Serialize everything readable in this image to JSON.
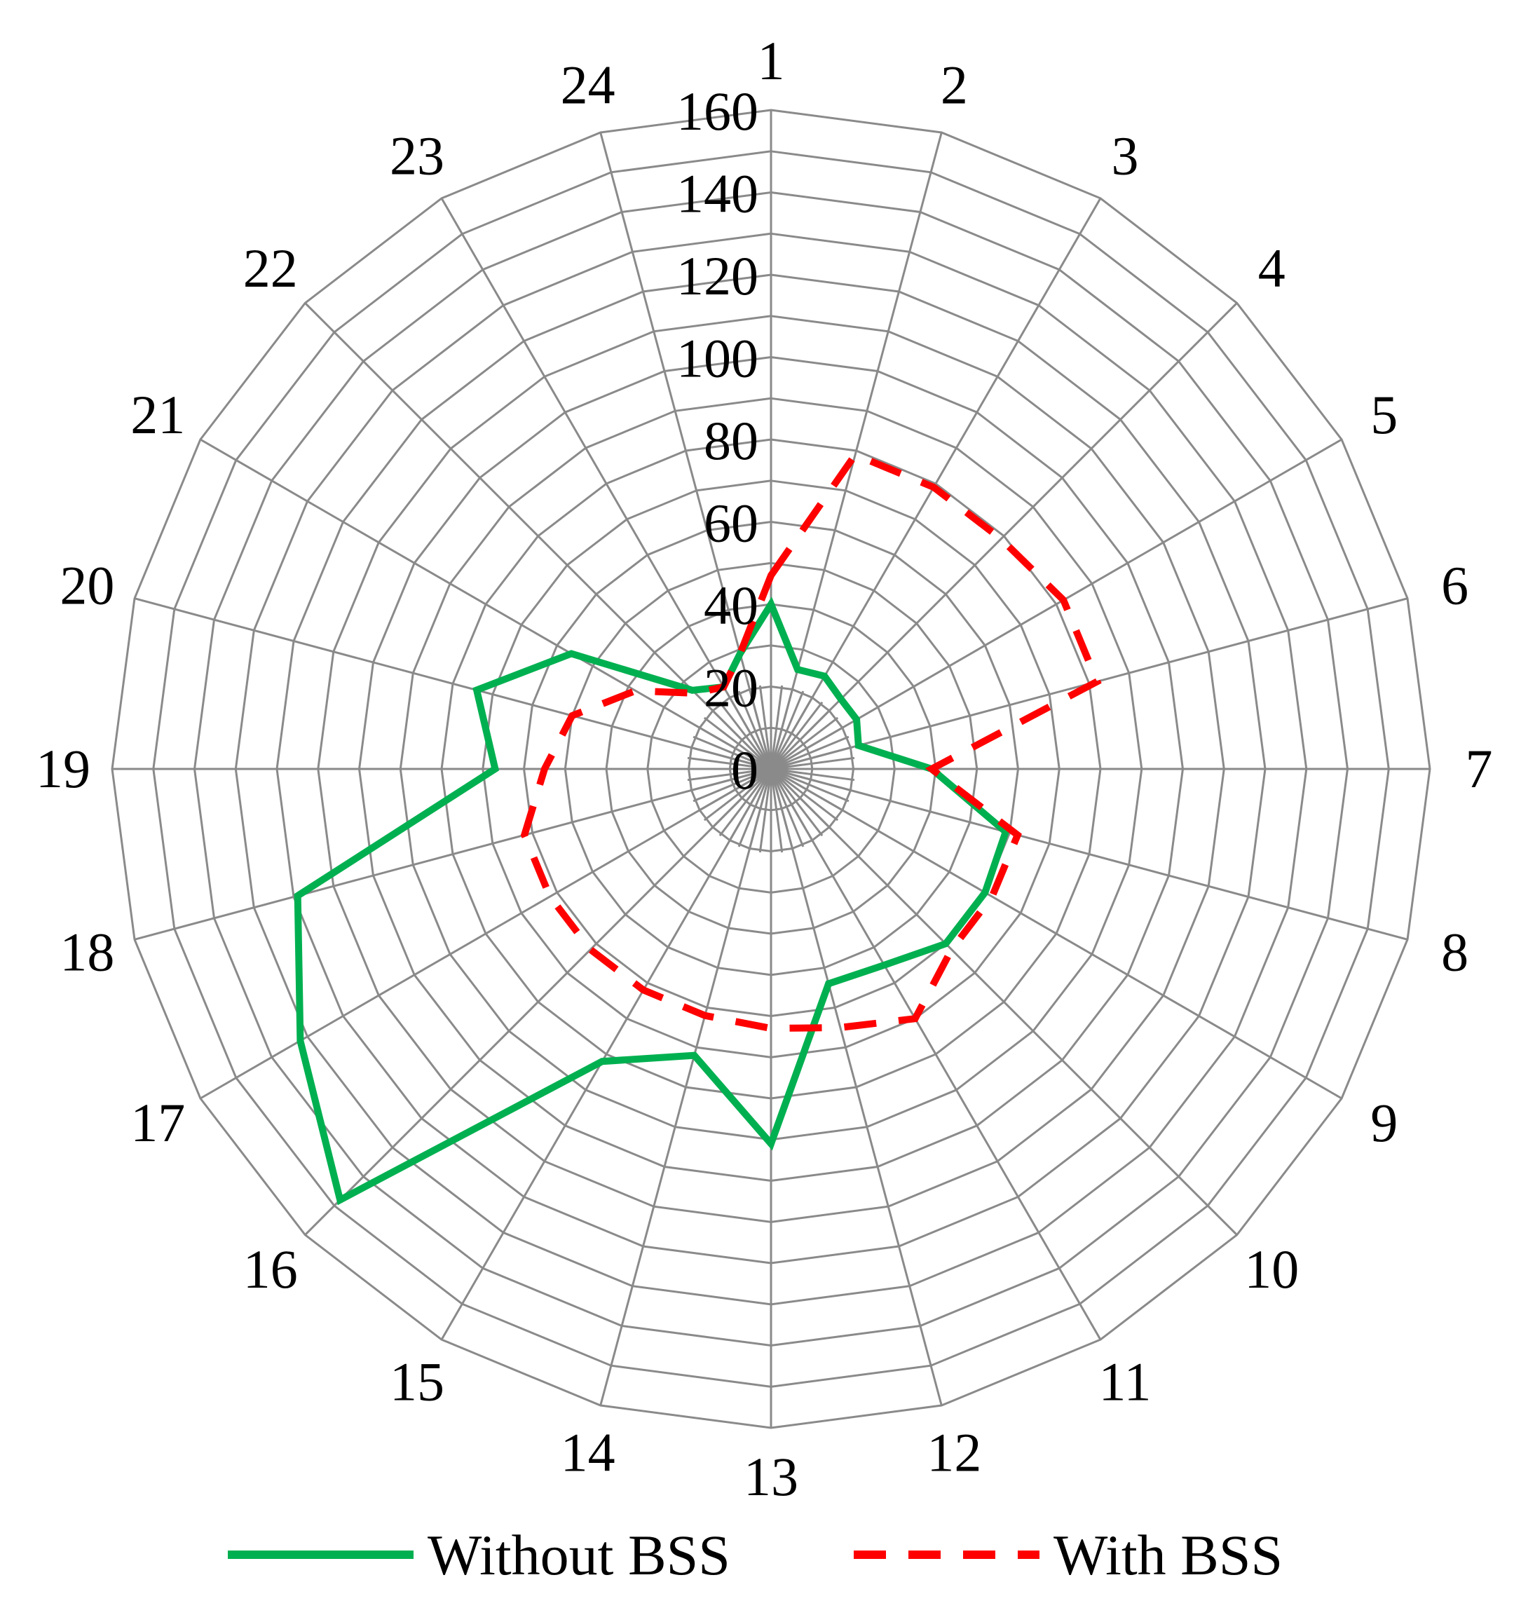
{
  "chart_data": {
    "type": "radar",
    "categories": [
      "1",
      "2",
      "3",
      "4",
      "5",
      "6",
      "7",
      "8",
      "9",
      "10",
      "11",
      "12",
      "13",
      "14",
      "15",
      "16",
      "17",
      "18",
      "19",
      "20",
      "21",
      "22",
      "23",
      "24"
    ],
    "r_ticks": [
      "0",
      "20",
      "40",
      "60",
      "80",
      "100",
      "120",
      "140",
      "160"
    ],
    "rlim": [
      0,
      160
    ],
    "grid": true,
    "legend_position": "bottom",
    "series": [
      {
        "name": "Without BSS",
        "color": "#00b050",
        "line_style": "solid",
        "values": [
          40,
          25,
          26,
          24,
          24,
          22,
          39,
          59,
          60,
          60,
          55,
          54,
          91,
          72,
          82,
          148,
          132,
          119,
          67,
          74,
          56,
          27,
          23,
          29
        ]
      },
      {
        "name": "With BSS",
        "color": "#ff0000",
        "line_style": "dashed",
        "values": [
          47,
          79,
          79,
          79,
          82,
          82,
          39,
          62,
          62,
          62,
          70,
          65,
          63,
          62,
          62,
          62,
          62,
          62,
          55,
          50,
          38,
          26,
          23,
          29
        ]
      }
    ]
  }
}
